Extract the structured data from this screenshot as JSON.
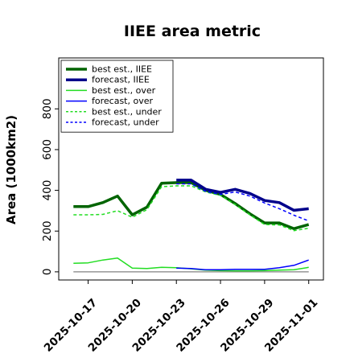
{
  "chart_data": {
    "type": "line",
    "title": "IIEE area metric",
    "ylabel": "Area (1000km2)",
    "xlabel": "",
    "ylim": [
      -40,
      1050
    ],
    "yticks": [
      0,
      200,
      400,
      600,
      800
    ],
    "xlim": [
      "2025-10-15",
      "2025-11-02"
    ],
    "xticks": [
      "2025-10-17",
      "2025-10-20",
      "2025-10-23",
      "2025-10-26",
      "2025-10-29",
      "2025-11-01"
    ],
    "highlight_tick": "2025-10-23",
    "highlight_color": "#008000",
    "grid": false,
    "legend_position": "top-left",
    "series": [
      {
        "name": "best est., IIEE",
        "color": "#006400",
        "style": "solid",
        "weight": "thick",
        "x": [
          "2025-10-16",
          "2025-10-17",
          "2025-10-18",
          "2025-10-19",
          "2025-10-20",
          "2025-10-21",
          "2025-10-22",
          "2025-10-23",
          "2025-10-24",
          "2025-10-25",
          "2025-10-26",
          "2025-10-27",
          "2025-10-28",
          "2025-10-29",
          "2025-10-30",
          "2025-10-31",
          "2025-11-01"
        ],
        "y": [
          320,
          320,
          340,
          372,
          280,
          318,
          435,
          438,
          438,
          400,
          380,
          335,
          285,
          240,
          240,
          212,
          232
        ]
      },
      {
        "name": "forecast, IIEE",
        "color": "#00008b",
        "style": "solid",
        "weight": "thick",
        "x": [
          "2025-10-23",
          "2025-10-24",
          "2025-10-25",
          "2025-10-26",
          "2025-10-27",
          "2025-10-28",
          "2025-10-29",
          "2025-10-30",
          "2025-10-31",
          "2025-11-01"
        ],
        "y": [
          450,
          450,
          405,
          390,
          405,
          385,
          350,
          340,
          302,
          310
        ]
      },
      {
        "name": "best est., over",
        "color": "#22dd22",
        "style": "solid",
        "weight": "normal",
        "x": [
          "2025-10-16",
          "2025-10-17",
          "2025-10-18",
          "2025-10-19",
          "2025-10-20",
          "2025-10-21",
          "2025-10-22",
          "2025-10-23",
          "2025-10-24",
          "2025-10-25",
          "2025-10-26",
          "2025-10-27",
          "2025-10-28",
          "2025-10-29",
          "2025-10-30",
          "2025-10-31",
          "2025-11-01"
        ],
        "y": [
          42,
          44,
          58,
          68,
          18,
          16,
          22,
          20,
          15,
          8,
          6,
          5,
          5,
          6,
          8,
          10,
          22
        ]
      },
      {
        "name": "forecast, over",
        "color": "#0000ff",
        "style": "solid",
        "weight": "normal",
        "x": [
          "2025-10-23",
          "2025-10-24",
          "2025-10-25",
          "2025-10-26",
          "2025-10-27",
          "2025-10-28",
          "2025-10-29",
          "2025-10-30",
          "2025-10-31",
          "2025-11-01"
        ],
        "y": [
          18,
          16,
          10,
          10,
          12,
          12,
          12,
          20,
          32,
          58
        ]
      },
      {
        "name": "best est., under",
        "color": "#22dd22",
        "style": "dashed",
        "weight": "normal",
        "x": [
          "2025-10-16",
          "2025-10-17",
          "2025-10-18",
          "2025-10-19",
          "2025-10-20",
          "2025-10-21",
          "2025-10-22",
          "2025-10-23",
          "2025-10-24",
          "2025-10-25",
          "2025-10-26",
          "2025-10-27",
          "2025-10-28",
          "2025-10-29",
          "2025-10-30",
          "2025-10-31",
          "2025-11-01"
        ],
        "y": [
          280,
          280,
          282,
          300,
          268,
          305,
          418,
          422,
          422,
          392,
          375,
          330,
          280,
          232,
          230,
          202,
          214
        ]
      },
      {
        "name": "forecast, under",
        "color": "#0000ff",
        "style": "dashed",
        "weight": "normal",
        "x": [
          "2025-10-23",
          "2025-10-24",
          "2025-10-25",
          "2025-10-26",
          "2025-10-27",
          "2025-10-28",
          "2025-10-29",
          "2025-10-30",
          "2025-10-31",
          "2025-11-01"
        ],
        "y": [
          432,
          432,
          395,
          380,
          392,
          372,
          338,
          310,
          278,
          250
        ]
      }
    ],
    "baseline": {
      "color": "#808080",
      "x": [
        "2025-10-16",
        "2025-11-01"
      ],
      "y": [
        0,
        0
      ]
    }
  }
}
